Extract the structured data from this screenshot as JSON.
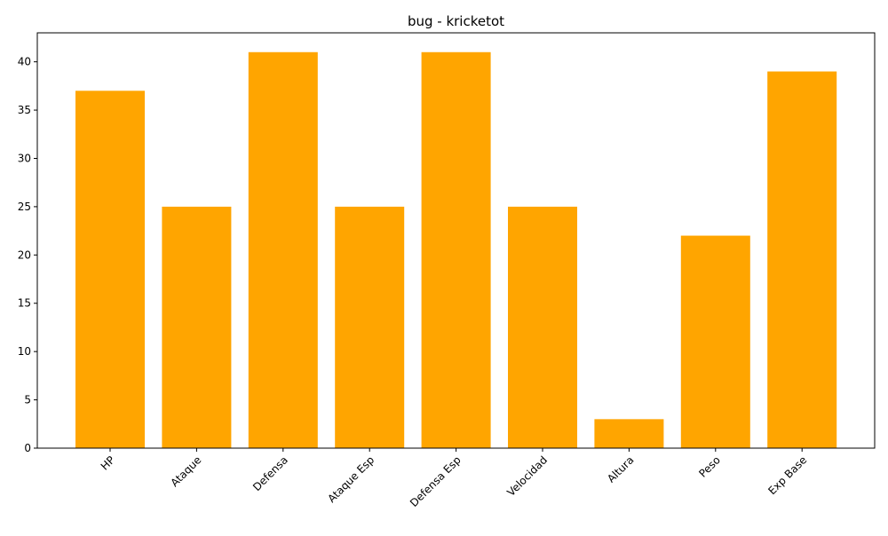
{
  "chart_data": {
    "type": "bar",
    "title": "bug - kricketot",
    "xlabel": "",
    "ylabel": "",
    "categories": [
      "HP",
      "Ataque",
      "Defensa",
      "Ataque Esp",
      "Defensa Esp",
      "Velocidad",
      "Altura",
      "Peso",
      "Exp Base"
    ],
    "values": [
      37,
      25,
      41,
      25,
      41,
      25,
      3,
      22,
      39
    ],
    "ylim": [
      0,
      43
    ],
    "yticks": [
      0,
      5,
      10,
      15,
      20,
      25,
      30,
      35,
      40
    ],
    "bar_color": "#ffa500",
    "grid": false,
    "legend": "none"
  }
}
